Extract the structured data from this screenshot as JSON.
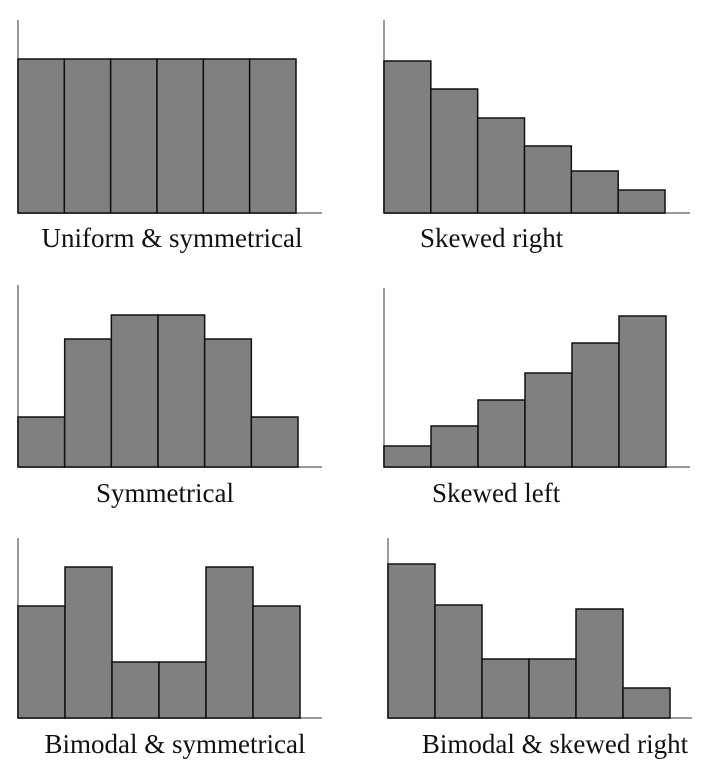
{
  "chart_data": [
    {
      "type": "bar",
      "title": "Uniform & symmetrical",
      "values": [
        154,
        154,
        154,
        154,
        154,
        154
      ],
      "color": "#808080",
      "ylim": [
        0,
        160
      ]
    },
    {
      "type": "bar",
      "title": "Skewed right",
      "values": [
        152,
        124,
        95,
        67,
        42,
        23
      ],
      "color": "#808080",
      "ylim": [
        0,
        160
      ]
    },
    {
      "type": "bar",
      "title": "Symmetrical",
      "values": [
        50,
        128,
        152,
        152,
        128,
        50
      ],
      "color": "#808080",
      "ylim": [
        0,
        160
      ]
    },
    {
      "type": "bar",
      "title": "Skewed left",
      "values": [
        21,
        41,
        67,
        94,
        124,
        151
      ],
      "color": "#808080",
      "ylim": [
        0,
        160
      ]
    },
    {
      "type": "bar",
      "title": "Bimodal & symmetrical",
      "values": [
        112,
        151,
        56,
        56,
        151,
        112
      ],
      "color": "#808080",
      "ylim": [
        0,
        160
      ]
    },
    {
      "type": "bar",
      "title": "Bimodal & skewed right",
      "values": [
        154,
        113,
        59,
        59,
        109,
        30
      ],
      "color": "#808080",
      "ylim": [
        0,
        160
      ]
    }
  ]
}
